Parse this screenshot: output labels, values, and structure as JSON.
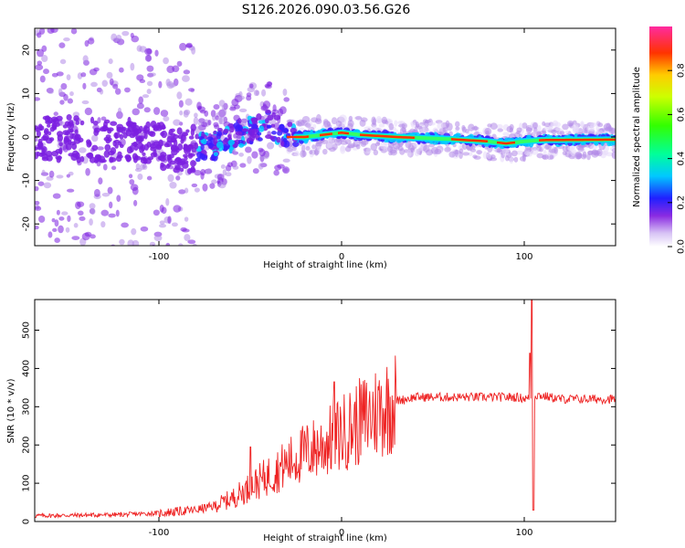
{
  "title": "S126.2026.090.03.56.G26",
  "chart_data": [
    {
      "type": "heatmap",
      "xlabel": "Height of straight line (km)",
      "ylabel": "Frequency (Hz)",
      "xlim": [
        -168,
        150
      ],
      "ylim": [
        -25,
        25
      ],
      "xticks": [
        "-100",
        "0",
        "100"
      ],
      "xtick_values": [
        -100,
        0,
        100
      ],
      "yticks": [
        "-20",
        "-10",
        "0",
        "10",
        "20"
      ],
      "ytick_values": [
        -20,
        -10,
        0,
        10,
        20
      ],
      "colorbar": {
        "label": "Normalized spectral amplitude",
        "range": [
          0,
          1
        ],
        "ticks": [
          "0.0",
          "0.2",
          "0.4",
          "0.6",
          "0.8"
        ],
        "tick_values": [
          0.0,
          0.2,
          0.4,
          0.6,
          0.8
        ]
      },
      "ridge": {
        "description_points_x": [
          -168,
          -120,
          -100,
          -85,
          -70,
          -55,
          -40,
          -30,
          -20,
          -10,
          0,
          10,
          30,
          60,
          80,
          90,
          100,
          110,
          150
        ],
        "description_points_y": [
          0,
          -1,
          -2,
          -3,
          -2,
          1,
          3,
          0,
          0,
          0.5,
          1,
          0.5,
          0,
          -0.5,
          -1,
          -1.5,
          -1,
          -0.7,
          -0.6
        ]
      }
    },
    {
      "type": "line",
      "xlabel": "Height of straight line (km)",
      "ylabel": "SNR (10 * v/v)",
      "xlim": [
        -168,
        150
      ],
      "ylim": [
        0,
        580
      ],
      "xticks": [
        "-100",
        "0",
        "100"
      ],
      "xtick_values": [
        -100,
        0,
        100
      ],
      "yticks": [
        "0",
        "100",
        "200",
        "300",
        "400",
        "500"
      ],
      "ytick_values": [
        0,
        100,
        200,
        300,
        400,
        500
      ],
      "color": "#ee2222",
      "trend_x": [
        -168,
        -120,
        -100,
        -80,
        -70,
        -60,
        -50,
        -40,
        -30,
        -20,
        -10,
        0,
        10,
        20,
        30,
        40,
        60,
        80,
        95,
        104,
        105,
        106,
        108,
        120,
        150
      ],
      "trend_y": [
        15,
        18,
        22,
        30,
        40,
        60,
        90,
        120,
        150,
        180,
        200,
        230,
        260,
        290,
        315,
        325,
        325,
        325,
        325,
        320,
        300,
        330,
        330,
        320,
        320
      ],
      "spikes": [
        {
          "x": -50,
          "y": 195
        },
        {
          "x": -4,
          "y": 365
        },
        {
          "x": 104,
          "y": 580
        },
        {
          "x": 105,
          "y": 30
        },
        {
          "x": 103,
          "y": 440
        }
      ]
    }
  ]
}
